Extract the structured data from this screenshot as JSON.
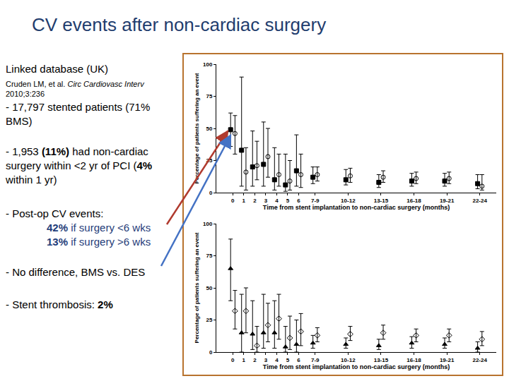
{
  "title": "CV events after non-cardiac surgery",
  "source": {
    "heading": "Linked database (UK)",
    "citation": [
      {
        "text": "Cruden LM, et al. "
      },
      {
        "text": "Circ Cardiovasc Interv",
        "italic": true
      },
      {
        "text": " 2010;3:236"
      }
    ]
  },
  "points": [
    {
      "runs": [
        {
          "text": "- 17,797 stented patients (71% BMS)"
        }
      ]
    },
    {
      "runs": [
        {
          "text": "- 1,953 "
        },
        {
          "text": "(11%)",
          "bold": true
        },
        {
          "text": " had non-cardiac surgery within <2 yr of PCI ("
        },
        {
          "text": "4%",
          "bold": true
        },
        {
          "text": " within 1 yr)"
        }
      ]
    },
    {
      "runs": [
        {
          "text": "- Post-op CV events:"
        }
      ],
      "sub": [
        [
          {
            "text": "42%",
            "bold": true,
            "color": "#1f3d7a"
          },
          {
            "text": " if surgery <6 wks",
            "color": "#1f3d7a"
          }
        ],
        [
          {
            "text": "13%",
            "bold": true,
            "color": "#1f3d7a"
          },
          {
            "text": " if surgery >6 wks",
            "color": "#1f3d7a"
          }
        ]
      ]
    },
    {
      "runs": [
        {
          "text": "- No difference, BMS vs. DES"
        }
      ]
    },
    {
      "runs": [
        {
          "text": "- Stent thrombosis: "
        },
        {
          "text": "2%",
          "bold": true
        }
      ]
    }
  ],
  "chart_data": [
    {
      "type": "scatter",
      "xlabel": "Time from stent implantation to non-cardiac surgery (months)",
      "ylabel": "Percentage of patients suffering an event",
      "xlim": [
        -1.5,
        24
      ],
      "ylim": [
        0,
        100
      ],
      "xticks": [
        0,
        1,
        2,
        3,
        4,
        5,
        6,
        {
          "value": 7.5,
          "label": "7-9"
        },
        {
          "value": 10.5,
          "label": "10-12"
        },
        {
          "value": 13.5,
          "label": "13-15"
        },
        {
          "value": 16.5,
          "label": "16-18"
        },
        {
          "value": 19.5,
          "label": "19-21"
        },
        {
          "value": 22.5,
          "label": "22-24"
        }
      ],
      "yticks": [
        0,
        25,
        50,
        75,
        100
      ],
      "series": [
        {
          "marker": "square",
          "color": "#000000",
          "x": [
            -0.2,
            0.8,
            1.8,
            2.8,
            3.8,
            4.8,
            5.8,
            7.3,
            10.3,
            13.3,
            16.3,
            19.3,
            22.3
          ],
          "values": [
            49,
            33,
            20,
            22,
            10,
            6,
            17,
            12,
            10,
            8,
            9,
            9,
            7
          ],
          "ci_low": [
            36,
            5,
            5,
            5,
            2,
            1,
            5,
            7,
            6,
            4,
            5,
            5,
            3
          ],
          "ci_high": [
            62,
            90,
            48,
            55,
            35,
            30,
            45,
            20,
            18,
            14,
            15,
            15,
            14
          ]
        },
        {
          "marker": "circle-open",
          "color": "#000000",
          "x": [
            0.2,
            1.2,
            2.2,
            3.2,
            4.2,
            5.2,
            6.2,
            7.7,
            10.7,
            13.7,
            16.7,
            19.7,
            22.7
          ],
          "values": [
            46,
            16,
            21,
            28,
            14,
            9,
            14,
            14,
            13,
            12,
            11,
            11,
            5
          ],
          "ci_low": [
            30,
            2,
            10,
            12,
            5,
            2,
            4,
            9,
            8,
            8,
            7,
            7,
            2
          ],
          "ci_high": [
            60,
            35,
            40,
            50,
            30,
            25,
            30,
            20,
            19,
            17,
            16,
            16,
            14
          ]
        }
      ]
    },
    {
      "type": "scatter",
      "xlabel": "Time from stent implantation to non-cardiac surgery (months)",
      "ylabel": "Percentage of patients suffering an event",
      "xlim": [
        -1.5,
        24
      ],
      "ylim": [
        0,
        100
      ],
      "xticks": [
        0,
        1,
        2,
        3,
        4,
        5,
        6,
        {
          "value": 7.5,
          "label": "7-9"
        },
        {
          "value": 10.5,
          "label": "10-12"
        },
        {
          "value": 13.5,
          "label": "13-15"
        },
        {
          "value": 16.5,
          "label": "16-18"
        },
        {
          "value": 19.5,
          "label": "19-21"
        },
        {
          "value": 22.5,
          "label": "22-24"
        }
      ],
      "yticks": [
        0,
        25,
        50,
        75,
        100
      ],
      "series": [
        {
          "marker": "triangle-up",
          "color": "#000000",
          "x": [
            -0.2,
            0.8,
            1.8,
            2.8,
            3.8,
            4.8,
            5.8,
            7.3,
            10.3,
            13.3,
            16.3,
            19.3,
            22.3
          ],
          "values": [
            65,
            15,
            14,
            15,
            15,
            4,
            6,
            7,
            6,
            5,
            7,
            6,
            3
          ],
          "ci_low": [
            40,
            0,
            2,
            3,
            3,
            0,
            0,
            3,
            3,
            2,
            3,
            3,
            0
          ],
          "ci_high": [
            88,
            45,
            40,
            45,
            40,
            20,
            25,
            13,
            11,
            10,
            12,
            11,
            8
          ]
        },
        {
          "marker": "diamond-open",
          "color": "#000000",
          "x": [
            0.2,
            1.2,
            2.2,
            3.2,
            4.2,
            5.2,
            6.2,
            7.7,
            10.7,
            13.7,
            16.7,
            19.7,
            22.7
          ],
          "values": [
            32,
            32,
            5,
            21,
            26,
            11,
            16,
            13,
            14,
            15,
            13,
            13,
            10
          ],
          "ci_low": [
            18,
            15,
            0,
            8,
            10,
            2,
            5,
            8,
            9,
            10,
            8,
            8,
            5
          ],
          "ci_high": [
            48,
            50,
            20,
            38,
            45,
            28,
            30,
            19,
            20,
            21,
            18,
            18,
            16
          ]
        }
      ]
    }
  ]
}
